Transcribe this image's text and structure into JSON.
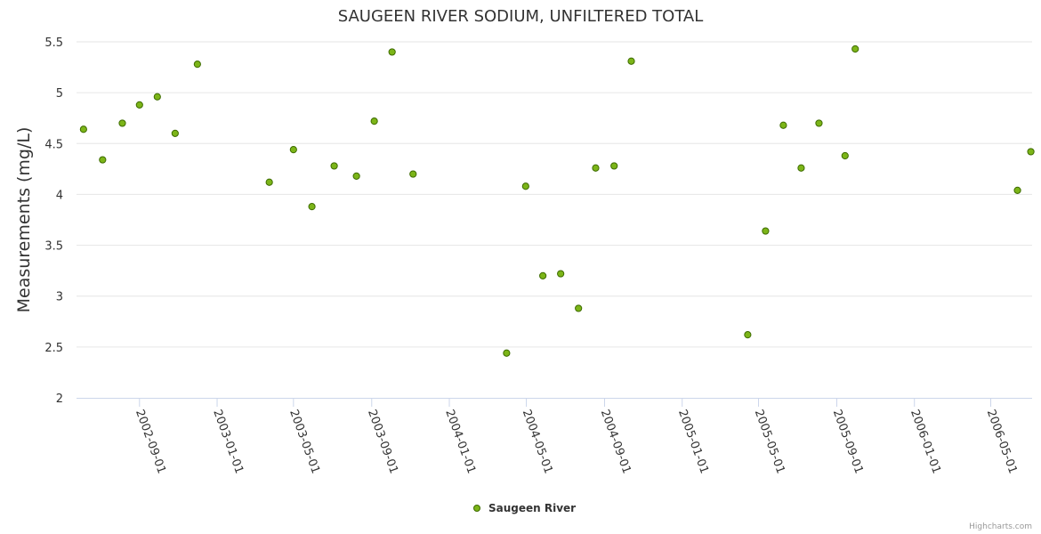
{
  "chart_data": {
    "type": "scatter",
    "title": "SAUGEEN RIVER SODIUM, UNFILTERED TOTAL",
    "xlabel": "",
    "ylabel": "Measurements (mg/L)",
    "ylim": [
      2,
      5.5
    ],
    "yticks": [
      "2",
      "2.5",
      "3",
      "3.5",
      "4",
      "4.5",
      "5",
      "5.5"
    ],
    "ytick_values": [
      2,
      2.5,
      3,
      3.5,
      4,
      4.5,
      5,
      5.5
    ],
    "xlim": [
      "2002-05-25",
      "2006-07-05"
    ],
    "xticks": [
      "2002-09-01",
      "2003-01-01",
      "2003-05-01",
      "2003-09-01",
      "2004-01-01",
      "2004-05-01",
      "2004-09-01",
      "2005-01-01",
      "2005-05-01",
      "2005-09-01",
      "2006-01-01",
      "2006-05-01"
    ],
    "grid": true,
    "legend_position": "bottom-center",
    "color": "#7cb518",
    "series": [
      {
        "name": "Saugeen River",
        "points": [
          {
            "x": "2002-06-05",
            "y": 4.64
          },
          {
            "x": "2002-07-05",
            "y": 4.34
          },
          {
            "x": "2002-08-05",
            "y": 4.7
          },
          {
            "x": "2002-09-01",
            "y": 4.88
          },
          {
            "x": "2002-09-29",
            "y": 4.96
          },
          {
            "x": "2002-10-27",
            "y": 4.6
          },
          {
            "x": "2002-12-01",
            "y": 5.28
          },
          {
            "x": "2003-03-24",
            "y": 4.12
          },
          {
            "x": "2003-05-01",
            "y": 4.44
          },
          {
            "x": "2003-05-30",
            "y": 3.88
          },
          {
            "x": "2003-07-04",
            "y": 4.28
          },
          {
            "x": "2003-08-08",
            "y": 4.18
          },
          {
            "x": "2003-09-05",
            "y": 4.72
          },
          {
            "x": "2003-10-03",
            "y": 5.4
          },
          {
            "x": "2003-11-05",
            "y": 4.2
          },
          {
            "x": "2004-03-31",
            "y": 2.44
          },
          {
            "x": "2004-04-30",
            "y": 4.08
          },
          {
            "x": "2004-05-27",
            "y": 3.2
          },
          {
            "x": "2004-06-24",
            "y": 3.22
          },
          {
            "x": "2004-07-22",
            "y": 2.88
          },
          {
            "x": "2004-08-18",
            "y": 4.26
          },
          {
            "x": "2004-09-16",
            "y": 4.28
          },
          {
            "x": "2004-10-13",
            "y": 5.31
          },
          {
            "x": "2005-04-14",
            "y": 2.62
          },
          {
            "x": "2005-05-12",
            "y": 3.64
          },
          {
            "x": "2005-06-09",
            "y": 4.68
          },
          {
            "x": "2005-07-07",
            "y": 4.26
          },
          {
            "x": "2005-08-04",
            "y": 4.7
          },
          {
            "x": "2005-09-14",
            "y": 4.38
          },
          {
            "x": "2005-09-30",
            "y": 5.43
          },
          {
            "x": "2006-06-12",
            "y": 4.04
          },
          {
            "x": "2006-07-03",
            "y": 4.42
          }
        ]
      }
    ]
  },
  "credits": "Highcharts.com"
}
